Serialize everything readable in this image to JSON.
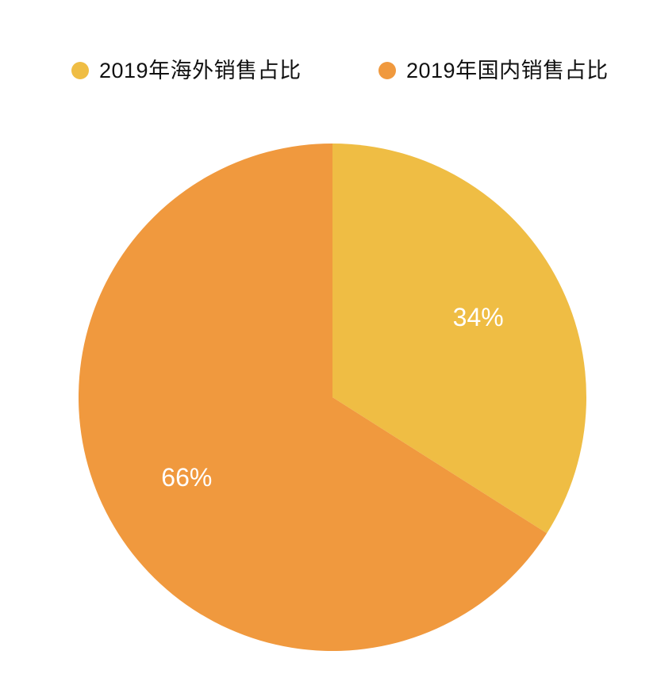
{
  "page": {
    "background": "#ffffff"
  },
  "chart_data": {
    "type": "pie",
    "title": "",
    "legend_position": "top",
    "start_angle_deg": 0,
    "slices": [
      {
        "label": "2019年海外销售占比",
        "value": 34,
        "display": "34%",
        "color": "#EFBD44"
      },
      {
        "label": "2019年国内销售占比",
        "value": 66,
        "display": "66%",
        "color": "#F0993E"
      }
    ],
    "slice_label_color": "#FFFFFF",
    "legend_text_color": "#111111"
  }
}
